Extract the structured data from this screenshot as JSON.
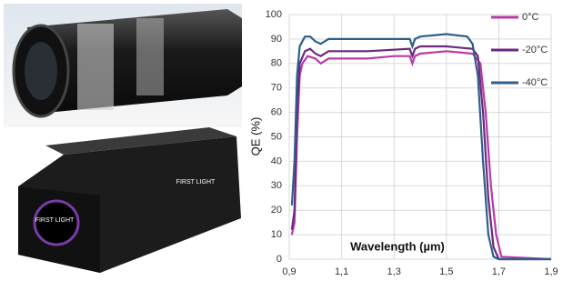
{
  "chart_data": {
    "type": "line",
    "y_label": "QE (%)",
    "x_label": "Wavelength (µm)",
    "xlim": [
      0.9,
      1.9
    ],
    "xticks": [
      {
        "value": 0.9,
        "label": "0,9"
      },
      {
        "value": 1.1,
        "label": "1,1"
      },
      {
        "value": 1.3,
        "label": "1,3"
      },
      {
        "value": 1.5,
        "label": "1,5"
      },
      {
        "value": 1.7,
        "label": "1,7"
      },
      {
        "value": 1.9,
        "label": "1,9"
      }
    ],
    "ylim": [
      0,
      100
    ],
    "yticks": [
      0,
      10,
      20,
      30,
      40,
      50,
      60,
      70,
      80,
      90,
      100
    ],
    "grid": true,
    "legend": "upper right",
    "series": [
      {
        "name": "0°C",
        "color": "#b83aa6",
        "x": [
          0.91,
          0.92,
          0.93,
          0.94,
          0.95,
          0.97,
          1.0,
          1.02,
          1.05,
          1.1,
          1.2,
          1.3,
          1.36,
          1.37,
          1.38,
          1.4,
          1.5,
          1.6,
          1.63,
          1.65,
          1.67,
          1.69,
          1.71,
          1.9
        ],
        "values": [
          10,
          15,
          50,
          75,
          80,
          83,
          82,
          80,
          82,
          82,
          82,
          83,
          83,
          80,
          83,
          84,
          85,
          84,
          80,
          60,
          30,
          10,
          1,
          0
        ]
      },
      {
        "name": "-20°C",
        "color": "#6a2a7e",
        "x": [
          0.91,
          0.92,
          0.93,
          0.94,
          0.96,
          0.98,
          1.0,
          1.02,
          1.05,
          1.2,
          1.36,
          1.37,
          1.38,
          1.4,
          1.5,
          1.6,
          1.62,
          1.64,
          1.66,
          1.68,
          1.7,
          1.9
        ],
        "values": [
          12,
          20,
          60,
          80,
          85,
          86,
          84,
          83,
          85,
          85,
          86,
          83,
          86,
          87,
          87,
          86,
          83,
          60,
          25,
          5,
          0,
          0
        ]
      },
      {
        "name": "-40°C",
        "color": "#2d5f8a",
        "x": [
          0.91,
          0.92,
          0.93,
          0.94,
          0.96,
          0.98,
          1.0,
          1.02,
          1.05,
          1.2,
          1.36,
          1.37,
          1.38,
          1.4,
          1.5,
          1.58,
          1.6,
          1.62,
          1.64,
          1.66,
          1.68,
          1.7,
          1.9
        ],
        "values": [
          22,
          40,
          75,
          87,
          91,
          91,
          89,
          88,
          90,
          90,
          90,
          87,
          90,
          91,
          92,
          91,
          88,
          75,
          40,
          10,
          1,
          0,
          0
        ]
      }
    ]
  },
  "camera_logo": "FIRST LIGHT"
}
